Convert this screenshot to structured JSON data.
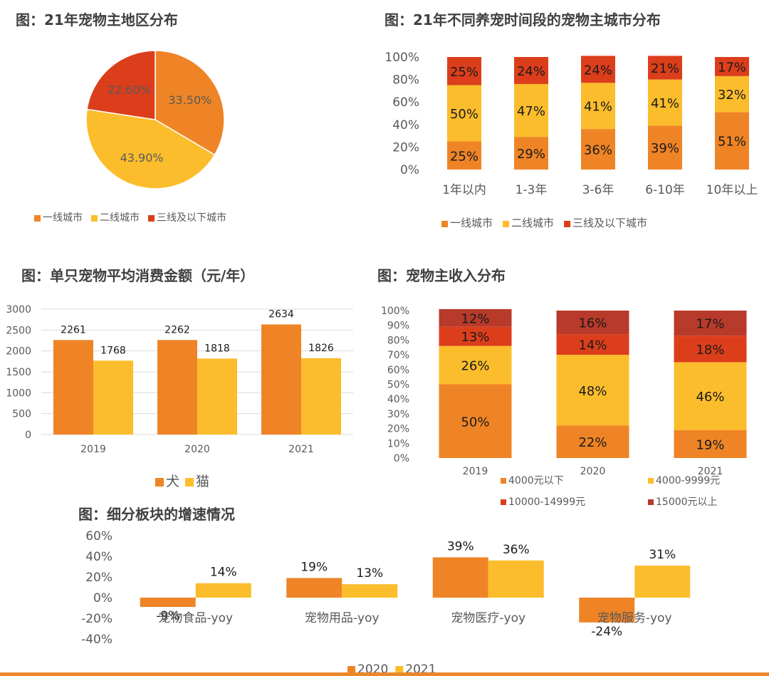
{
  "colors": {
    "c1": "#ef8426",
    "c2": "#fcbd2c",
    "c3": "#dc3e1b",
    "c4": "#b83a2a"
  },
  "chart_data": [
    {
      "id": "pie",
      "type": "pie",
      "title": "图：21年宠物主地区分布",
      "labels": [
        "一线城市",
        "二线城市",
        "三线及以下城市"
      ],
      "values": [
        33.5,
        43.9,
        22.6
      ],
      "value_labels": [
        "33.50%",
        "43.90%",
        "22.60%"
      ],
      "legend": "bottom"
    },
    {
      "id": "stack1",
      "type": "bar",
      "stacked": true,
      "title": "图：21年不同养宠时间段的宠物主城市分布",
      "categories": [
        "1年以内",
        "1-3年",
        "3-6年",
        "6-10年",
        "10年以上"
      ],
      "series": [
        {
          "name": "一线城市",
          "values": [
            25,
            29,
            36,
            39,
            51
          ]
        },
        {
          "name": "二线城市",
          "values": [
            50,
            47,
            41,
            41,
            32
          ]
        },
        {
          "name": "三线及以下城市",
          "values": [
            25,
            24,
            24,
            21,
            17
          ]
        }
      ],
      "yticks": [
        "0%",
        "20%",
        "40%",
        "60%",
        "80%",
        "100%"
      ],
      "ylim": [
        0,
        100
      ],
      "legend": "bottom"
    },
    {
      "id": "bars",
      "type": "bar",
      "title": "图：单只宠物平均消费金额（元/年）",
      "categories": [
        "2019",
        "2020",
        "2021"
      ],
      "series": [
        {
          "name": "犬",
          "values": [
            2261,
            2262,
            2634
          ]
        },
        {
          "name": "猫",
          "values": [
            1768,
            1818,
            1826
          ]
        }
      ],
      "yticks": [
        "0",
        "500",
        "1000",
        "1500",
        "2000",
        "2500",
        "3000"
      ],
      "ylim": [
        0,
        3000
      ],
      "grid": true,
      "legend": "bottom"
    },
    {
      "id": "stack2",
      "type": "bar",
      "stacked": true,
      "title": "图：宠物主收入分布",
      "categories": [
        "2019",
        "2020",
        "2021"
      ],
      "series": [
        {
          "name": "4000元以下",
          "values": [
            50,
            22,
            19
          ]
        },
        {
          "name": "4000-9999元",
          "values": [
            26,
            48,
            46
          ]
        },
        {
          "name": "10000-14999元",
          "values": [
            13,
            14,
            18
          ]
        },
        {
          "name": "15000元以上",
          "values": [
            12,
            16,
            17
          ]
        }
      ],
      "yticks": [
        "0%",
        "10%",
        "20%",
        "30%",
        "40%",
        "50%",
        "60%",
        "70%",
        "80%",
        "90%",
        "100%"
      ],
      "ylim": [
        0,
        100
      ],
      "legend": "bottom"
    },
    {
      "id": "growth",
      "type": "bar",
      "title": "图：细分板块的增速情况",
      "categories": [
        "宠物食品-yoy",
        "宠物用品-yoy",
        "宠物医疗-yoy",
        "宠物服务-yoy"
      ],
      "series": [
        {
          "name": "2020",
          "values": [
            -9,
            19,
            39,
            -24
          ]
        },
        {
          "name": "2021",
          "values": [
            14,
            13,
            36,
            31
          ]
        }
      ],
      "yticks": [
        "-40%",
        "-20%",
        "0%",
        "20%",
        "40%",
        "60%"
      ],
      "ylim": [
        -40,
        60
      ],
      "legend": "bottom"
    }
  ]
}
